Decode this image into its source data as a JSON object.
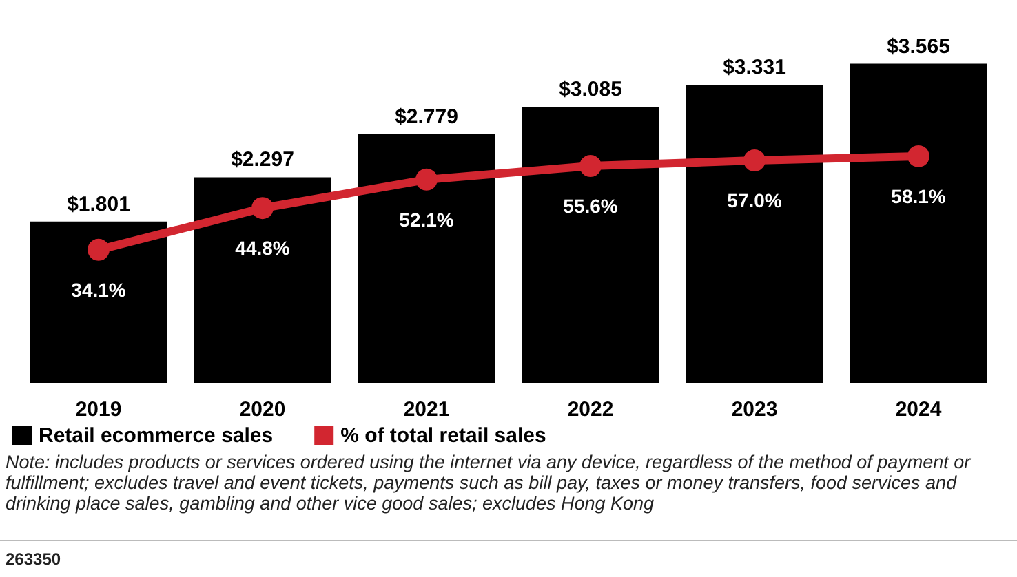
{
  "chart_data": {
    "type": "bar",
    "categories": [
      "2019",
      "2020",
      "2021",
      "2022",
      "2023",
      "2024"
    ],
    "series": [
      {
        "name": "Retail ecommerce sales",
        "color": "#000000",
        "values": [
          1.801,
          2.297,
          2.779,
          3.085,
          3.331,
          3.565
        ],
        "value_labels": [
          "$1.801",
          "$2.297",
          "$2.779",
          "$3.085",
          "$3.331",
          "$3.565"
        ]
      },
      {
        "name": "% of total retail sales",
        "type": "line",
        "axis": "y2",
        "color": "#d22630",
        "marker": "circle",
        "values": [
          34.1,
          44.8,
          52.1,
          55.6,
          57.0,
          58.1
        ],
        "value_labels": [
          "34.1%",
          "44.8%",
          "52.1%",
          "55.6%",
          "57.0%",
          "58.1%"
        ]
      }
    ],
    "legend": "bottom left",
    "annotations": [
      "Note: includes products or services ordered using the internet via any device, regardless of the method of payment or fulfillment; excludes travel and event tickets, payments such as bill pay, taxes or money transfers, food services and drinking place sales, gambling and other vice good sales; excludes Hong Kong",
      "263350"
    ]
  }
}
